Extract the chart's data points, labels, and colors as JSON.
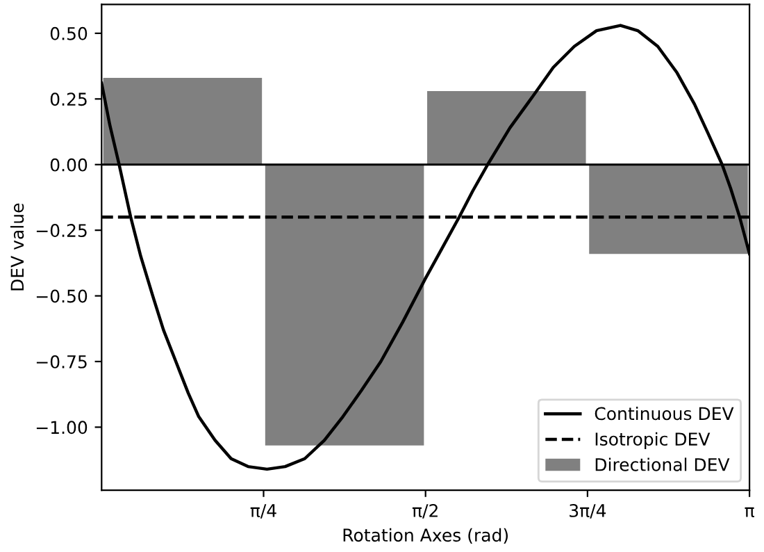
{
  "chart_data": {
    "type": "line",
    "xlabel": "Rotation Axes (rad)",
    "ylabel": "DEV value",
    "xlim": [
      0,
      3.1416
    ],
    "ylim": [
      -1.24,
      0.61
    ],
    "xticks": [
      {
        "value": 0.7854,
        "label": "π/4"
      },
      {
        "value": 1.5708,
        "label": "π/2"
      },
      {
        "value": 2.3562,
        "label": "3π/4"
      },
      {
        "value": 3.1416,
        "label": "π"
      }
    ],
    "yticks": [
      {
        "value": -1.0,
        "label": "−1.00"
      },
      {
        "value": -0.75,
        "label": "−0.75"
      },
      {
        "value": -0.5,
        "label": "−0.50"
      },
      {
        "value": -0.25,
        "label": "−0.25"
      },
      {
        "value": 0,
        "label": "0.00"
      },
      {
        "value": 0.25,
        "label": "0.25"
      },
      {
        "value": 0.5,
        "label": "0.50"
      }
    ],
    "series": [
      {
        "name": "Continuous DEV",
        "color": "#000000",
        "line_style": "solid",
        "x": [
          0,
          0.04,
          0.085,
          0.141,
          0.19,
          0.248,
          0.3,
          0.36,
          0.42,
          0.471,
          0.55,
          0.628,
          0.71,
          0.802,
          0.89,
          0.985,
          1.08,
          1.17,
          1.26,
          1.354,
          1.46,
          1.566,
          1.65,
          1.734,
          1.8,
          1.872,
          1.98,
          2.091,
          2.19,
          2.292,
          2.4,
          2.516,
          2.6,
          2.697,
          2.79,
          2.875,
          2.94,
          3.009,
          3.05,
          3.094,
          3.1416
        ],
        "values": [
          0.31,
          0.15,
          0,
          -0.2,
          -0.35,
          -0.5,
          -0.63,
          -0.75,
          -0.87,
          -0.96,
          -1.05,
          -1.12,
          -1.15,
          -1.16,
          -1.15,
          -1.12,
          -1.05,
          -0.96,
          -0.86,
          -0.75,
          -0.6,
          -0.44,
          -0.32,
          -0.2,
          -0.1,
          0,
          0.14,
          0.26,
          0.37,
          0.45,
          0.51,
          0.53,
          0.51,
          0.45,
          0.35,
          0.23,
          0.12,
          0,
          -0.09,
          -0.2,
          -0.34
        ]
      },
      {
        "name": "Isotropic DEV",
        "color": "#000000",
        "line_style": "dashed",
        "x": [
          0,
          3.1416
        ],
        "values": [
          -0.2,
          -0.2
        ]
      },
      {
        "name": "Directional DEV",
        "type": "bar",
        "color": "#808080",
        "x": [
          0.3927,
          1.1781,
          1.9635,
          2.7489
        ],
        "values": [
          0.33,
          -1.07,
          0.28,
          -0.34
        ]
      }
    ],
    "ref_lines": [
      {
        "axis": "y",
        "value": 0,
        "color": "#000000"
      }
    ],
    "legend": "bottom right",
    "grid": false
  }
}
